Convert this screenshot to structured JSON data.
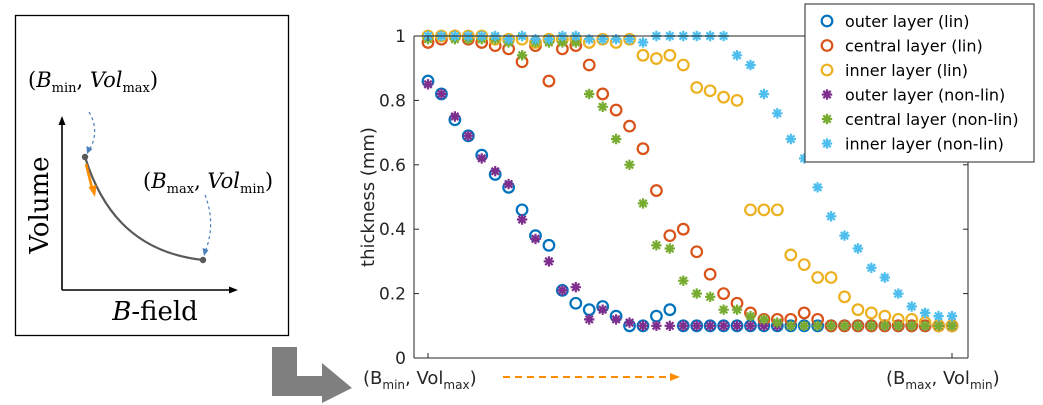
{
  "inset": {
    "ylabel": "Volume",
    "xlabel_italic": "B",
    "xlabel_rest": "-field",
    "top_annotation": {
      "B": "B",
      "B_sub": "min",
      "V": "Vol",
      "V_sub": "max"
    },
    "bottom_annotation": {
      "B": "B",
      "B_sub": "max",
      "V": "Vol",
      "V_sub": "min"
    },
    "colors": {
      "curve": "#595959",
      "arrow": "#ff8c00",
      "dashed": "#4a7ebb"
    }
  },
  "chart_data": {
    "type": "scatter",
    "title": "",
    "xlabel": "",
    "ylabel": "thickness (mm)",
    "ylim": [
      0,
      1
    ],
    "yticks": [
      0,
      0.2,
      0.4,
      0.6,
      0.8,
      1
    ],
    "x_start_label": {
      "main": "B",
      "sub": "min",
      "sep": ", ",
      "main2": "Vol",
      "sub2": "max"
    },
    "x_end_label": {
      "main": "B",
      "sub": "max",
      "sep": ", ",
      "main2": "Vol",
      "sub2": "min"
    },
    "x_arrow_color": "#ff8c00",
    "grid": false,
    "legend_position": "top-right",
    "x": [
      1,
      2,
      3,
      4,
      5,
      6,
      7,
      8,
      9,
      10,
      11,
      12,
      13,
      14,
      15,
      16,
      17,
      18,
      19,
      20,
      21,
      22,
      23,
      24,
      25,
      26,
      27,
      28,
      29,
      30,
      31,
      32,
      33,
      34,
      35,
      36,
      37,
      38,
      39,
      40
    ],
    "series": [
      {
        "name": "outer layer (lin)",
        "marker": "circle",
        "color": "#0072bd",
        "values": [
          0.86,
          0.82,
          0.74,
          0.69,
          0.63,
          0.57,
          0.53,
          0.46,
          0.38,
          0.35,
          0.21,
          0.17,
          0.15,
          0.16,
          0.13,
          0.1,
          0.1,
          0.13,
          0.15,
          0.1,
          0.1,
          0.1,
          0.1,
          0.1,
          0.1,
          0.1,
          0.1,
          0.1,
          0.1,
          0.1,
          0.1,
          0.1,
          0.1,
          0.1,
          0.1,
          0.1,
          0.1,
          0.1,
          0.1,
          0.1
        ]
      },
      {
        "name": "central layer (lin)",
        "marker": "circle",
        "color": "#d95319",
        "values": [
          0.98,
          0.99,
          1.0,
          0.99,
          0.98,
          0.97,
          0.96,
          0.92,
          0.97,
          0.86,
          0.96,
          0.97,
          0.91,
          0.82,
          0.77,
          0.72,
          0.65,
          0.52,
          0.38,
          0.4,
          0.33,
          0.26,
          0.2,
          0.17,
          0.14,
          0.12,
          0.12,
          0.12,
          0.14,
          0.12,
          0.1,
          0.1,
          0.1,
          0.1,
          0.1,
          0.1,
          0.1,
          0.1,
          0.1,
          0.1
        ]
      },
      {
        "name": "inner layer (lin)",
        "marker": "circle",
        "color": "#edb120",
        "values": [
          1.0,
          1.0,
          1.0,
          1.0,
          1.0,
          0.99,
          0.99,
          0.99,
          0.98,
          0.99,
          0.99,
          0.99,
          0.98,
          0.99,
          0.98,
          0.99,
          0.94,
          0.93,
          0.94,
          0.91,
          0.84,
          0.83,
          0.81,
          0.8,
          0.46,
          0.46,
          0.46,
          0.32,
          0.29,
          0.25,
          0.25,
          0.19,
          0.15,
          0.14,
          0.13,
          0.12,
          0.12,
          0.11,
          0.1,
          0.1
        ]
      },
      {
        "name": "outer layer (non-lin)",
        "marker": "star",
        "color": "#7e2f8e",
        "values": [
          0.85,
          0.82,
          0.75,
          0.69,
          0.62,
          0.58,
          0.54,
          0.43,
          0.37,
          0.3,
          0.21,
          0.22,
          0.12,
          0.15,
          0.12,
          0.11,
          0.1,
          0.1,
          0.1,
          0.1,
          0.1,
          0.1,
          0.1,
          0.1,
          0.1,
          0.1,
          0.1,
          0.1,
          0.1,
          0.1,
          0.1,
          0.1,
          0.1,
          0.1,
          0.1,
          0.1,
          0.1,
          0.1,
          0.1,
          0.1
        ]
      },
      {
        "name": "central layer (non-lin)",
        "marker": "star",
        "color": "#77ac30",
        "values": [
          0.99,
          1.0,
          0.99,
          0.99,
          0.99,
          0.99,
          0.98,
          0.94,
          0.98,
          0.98,
          0.98,
          0.98,
          0.82,
          0.78,
          0.68,
          0.6,
          0.48,
          0.35,
          0.34,
          0.24,
          0.2,
          0.19,
          0.15,
          0.15,
          0.13,
          0.12,
          0.11,
          0.1,
          0.1,
          0.1,
          0.1,
          0.1,
          0.1,
          0.1,
          0.1,
          0.1,
          0.1,
          0.1,
          0.1,
          0.1
        ]
      },
      {
        "name": "inner layer (non-lin)",
        "marker": "star",
        "color": "#4dbeee",
        "values": [
          1.0,
          1.0,
          1.0,
          1.0,
          1.0,
          1.0,
          0.99,
          1.0,
          0.99,
          0.99,
          1.0,
          1.0,
          0.99,
          0.99,
          0.99,
          0.99,
          0.98,
          1.0,
          1.0,
          1.0,
          1.0,
          1.0,
          1.0,
          0.94,
          0.91,
          0.82,
          0.76,
          0.68,
          0.62,
          0.53,
          0.44,
          0.38,
          0.34,
          0.28,
          0.25,
          0.2,
          0.16,
          0.14,
          0.13,
          0.13
        ]
      }
    ]
  }
}
